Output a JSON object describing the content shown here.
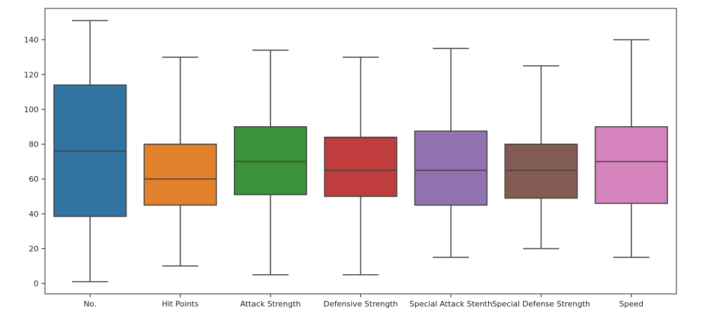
{
  "chart_data": {
    "type": "box",
    "title": "",
    "xlabel": "",
    "ylabel": "",
    "ylim": [
      -6,
      158
    ],
    "y_ticks": [
      "0",
      "20",
      "40",
      "60",
      "80",
      "100",
      "120",
      "140"
    ],
    "grid": false,
    "legend": "none",
    "categories": [
      "No.",
      "Hit Points",
      "Attack Strength",
      "Defensive Strength",
      "Special Attack Stenth",
      "Special Defense Strength",
      "Speed"
    ],
    "colors": [
      "#3274a1",
      "#e1812c",
      "#3a923a",
      "#c03d3e",
      "#9372b2",
      "#845b53",
      "#d684bd"
    ],
    "boxes": [
      {
        "whisker_low": 1,
        "q1": 38.5,
        "median": 76,
        "q3": 114,
        "whisker_high": 151
      },
      {
        "whisker_low": 10,
        "q1": 45,
        "median": 60,
        "q3": 80,
        "whisker_high": 130
      },
      {
        "whisker_low": 5,
        "q1": 51,
        "median": 70,
        "q3": 90,
        "whisker_high": 134
      },
      {
        "whisker_low": 5,
        "q1": 50,
        "median": 65,
        "q3": 84,
        "whisker_high": 130
      },
      {
        "whisker_low": 15,
        "q1": 45,
        "median": 65,
        "q3": 87.5,
        "whisker_high": 135
      },
      {
        "whisker_low": 20,
        "q1": 49,
        "median": 65,
        "q3": 80,
        "whisker_high": 125
      },
      {
        "whisker_low": 15,
        "q1": 46,
        "median": 70,
        "q3": 90,
        "whisker_high": 140
      }
    ]
  }
}
